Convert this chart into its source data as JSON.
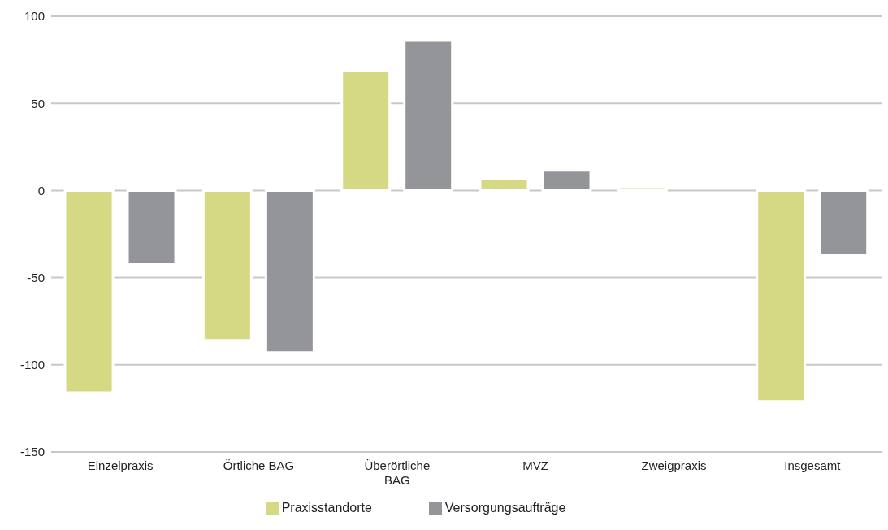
{
  "chart_data": {
    "type": "bar",
    "categories": [
      "Einzelpraxis",
      "Örtliche BAG",
      "Überörtliche BAG",
      "MVZ",
      "Zweigpraxis",
      "Insgesamt"
    ],
    "series": [
      {
        "name": "Praxisstandorte",
        "color": "#d6d984",
        "values": [
          -116,
          -86,
          69,
          7,
          2,
          -121
        ]
      },
      {
        "name": "Versorgungsaufträge",
        "color": "#939598",
        "values": [
          -42,
          -93,
          86,
          12,
          0,
          -37
        ]
      }
    ],
    "ylim": [
      -150,
      100
    ],
    "yticks": [
      -150,
      -100,
      -50,
      0,
      50,
      100
    ],
    "grid": "y",
    "legend": "bottom"
  }
}
